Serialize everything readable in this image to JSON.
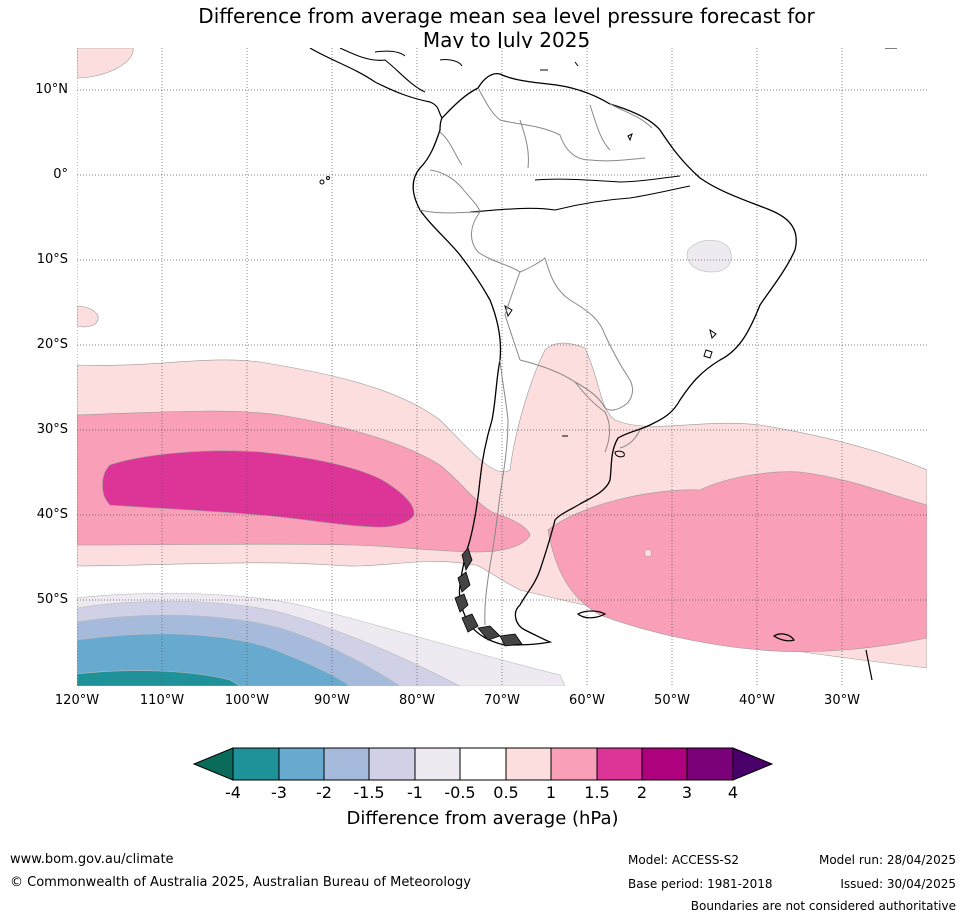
{
  "title_line1": "Difference from average mean sea level pressure forecast for",
  "title_line2": "May to July 2025",
  "lat_labels": [
    "10°N",
    "0°",
    "10°S",
    "20°S",
    "30°S",
    "40°S",
    "50°S"
  ],
  "lon_labels": [
    "120°W",
    "110°W",
    "100°W",
    "90°W",
    "80°W",
    "70°W",
    "60°W",
    "50°W",
    "40°W",
    "30°W"
  ],
  "colorbar": {
    "title": "Difference from average (hPa)",
    "tick_labels": [
      "-4",
      "-3",
      "-2",
      "-1.5",
      "-1",
      "-0.5",
      "0.5",
      "1",
      "1.5",
      "2",
      "3",
      "4"
    ],
    "colors": {
      "below_-4": "#0b6b5a",
      "-4_to_-3": "#1f9199",
      "-3_to_-2": "#67a9cf",
      "-2_to_-1.5": "#a6bbdb",
      "-1.5_to_-1": "#d0d1e6",
      "-1_to_-0.5": "#efeaf2",
      "-0.5_to_0.5": "#ffffff",
      "0.5_to_1": "#fddede",
      "1_to_1.5": "#f99fb8",
      "1.5_to_2": "#dd3497",
      "2_to_3": "#ae017e",
      "3_to_4": "#7a0177",
      "above_4": "#49006a"
    }
  },
  "footer": {
    "url": "www.bom.gov.au/climate",
    "copyright": "© Commonwealth of Australia 2025, Australian Bureau of Meteorology",
    "model": "Model: ACCESS-S2",
    "base_period": "Base period: 1981-2018",
    "model_run": "Model run: 28/04/2025",
    "issued": "Issued: 30/04/2025",
    "disclaimer": "Boundaries are not considered authoritative"
  }
}
